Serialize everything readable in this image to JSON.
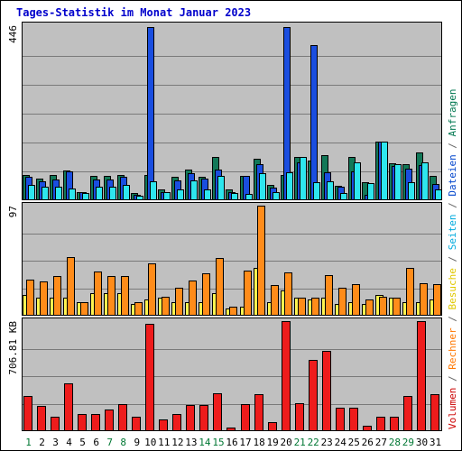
{
  "chart_data": {
    "type": "bar",
    "title": "Tages-Statistik im Monat Januar 2023",
    "days": [
      "1",
      "2",
      "3",
      "4",
      "5",
      "6",
      "7",
      "8",
      "9",
      "10",
      "11",
      "12",
      "13",
      "14",
      "15",
      "16",
      "17",
      "18",
      "19",
      "20",
      "21",
      "22",
      "23",
      "24",
      "25",
      "26",
      "27",
      "28",
      "29",
      "30",
      "31"
    ],
    "weekend_days": [
      "1",
      "7",
      "8",
      "14",
      "15",
      "21",
      "22",
      "28",
      "29"
    ],
    "panels": [
      {
        "id": "requests",
        "max_label": "446",
        "ymax": 446,
        "series": [
          {
            "name": "Anfragen",
            "color": "#127858",
            "values": [
              66,
              56,
              66,
              76,
              22,
              62,
              62,
              64,
              18,
              64,
              28,
              60,
              80,
              60,
              112,
              28,
              62,
              106,
              40,
              64,
              112,
              102,
              116,
              38,
              112,
              46,
              152,
              96,
              92,
              124,
              62
            ]
          },
          {
            "name": "Dateien",
            "color": "#1a4ee0",
            "values": [
              60,
              48,
              54,
              74,
              20,
              54,
              54,
              60,
              14,
              446,
              22,
              52,
              70,
              56,
              78,
              22,
              62,
              94,
              32,
              446,
              98,
              400,
              72,
              36,
              74,
              14,
              152,
              88,
              82,
              90,
              42
            ]
          },
          {
            "name": "Seiten",
            "color": "#2ee6ee",
            "values": [
              40,
              34,
              36,
              30,
              18,
              34,
              36,
              40,
              12,
              48,
              20,
              28,
              52,
              28,
              62,
              18,
              16,
              70,
              20,
              72,
              112,
              46,
              48,
              18,
              98,
              44,
              152,
              92,
              46,
              98,
              28
            ]
          }
        ]
      },
      {
        "id": "visits",
        "max_label": "97",
        "ymax": 97,
        "series": [
          {
            "name": "Besuche",
            "color": "#fff450",
            "values": [
              18,
              16,
              16,
              16,
              12,
              20,
              20,
              20,
              10,
              14,
              16,
              12,
              12,
              12,
              20,
              6,
              8,
              42,
              12,
              22,
              16,
              14,
              16,
              10,
              12,
              10,
              18,
              16,
              12,
              12,
              14
            ]
          },
          {
            "name": "Rechner",
            "color": "#ff8c1a",
            "values": [
              32,
              30,
              35,
              52,
              12,
              39,
              35,
              35,
              12,
              46,
              17,
              25,
              31,
              37,
              51,
              8,
              40,
              97,
              27,
              38,
              16,
              16,
              36,
              25,
              28,
              14,
              17,
              16,
              42,
              29,
              28
            ]
          }
        ]
      },
      {
        "id": "volume",
        "max_label": "706.81 KB",
        "ymax": 706.81,
        "series": [
          {
            "name": "Volumen",
            "color": "#ee1c1c",
            "values": [
              225,
              165,
              90,
              305,
              110,
              110,
              140,
              175,
              90,
              690,
              75,
              110,
              170,
              170,
              245,
              25,
              175,
              240,
              60,
              706.81,
              180,
              455,
              515,
              150,
              150,
              35,
              90,
              90,
              225,
              706.81,
              240
            ]
          }
        ]
      }
    ],
    "legend_right": [
      {
        "text": "Volumen",
        "color": "#cc0000"
      },
      {
        "text": " / ",
        "color": "#666666"
      },
      {
        "text": "Rechner",
        "color": "#ff7700"
      },
      {
        "text": " / ",
        "color": "#666666"
      },
      {
        "text": "Besuche",
        "color": "#e0c800"
      },
      {
        "text": " / ",
        "color": "#666666"
      },
      {
        "text": "Seiten",
        "color": "#00aadd"
      },
      {
        "text": " / ",
        "color": "#666666"
      },
      {
        "text": "Dateien",
        "color": "#0044cc"
      },
      {
        "text": " / ",
        "color": "#666666"
      },
      {
        "text": "Anfragen",
        "color": "#007750"
      }
    ],
    "colors": {
      "plot_bg": "#c0c0c0",
      "title": "#0000cc",
      "day_label": "#000000",
      "weekend_label": "#007733",
      "grid": "#7a7a7a"
    }
  }
}
